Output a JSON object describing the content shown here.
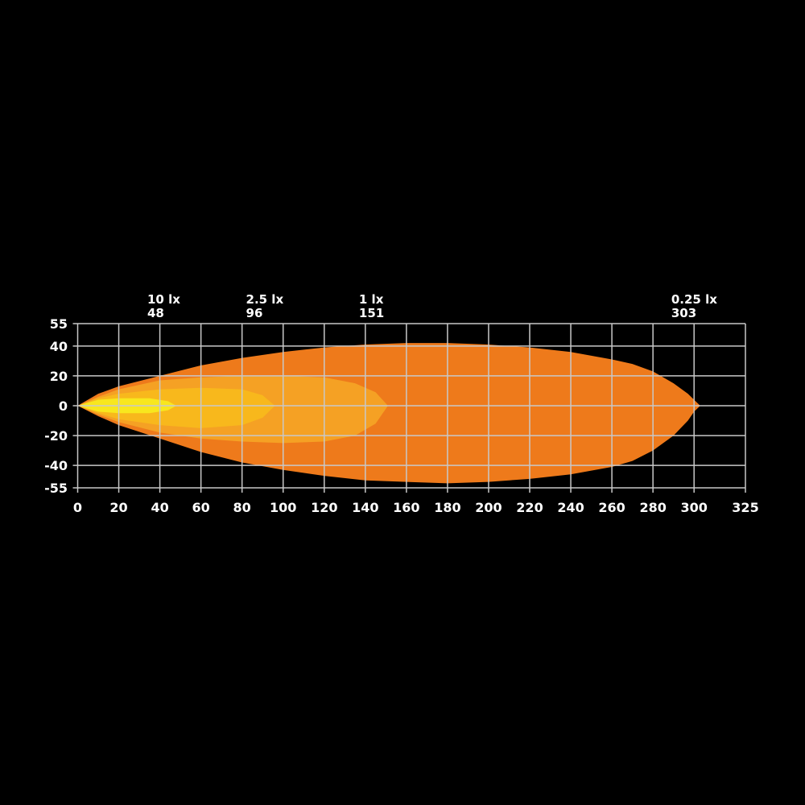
{
  "chart_data": {
    "type": "area",
    "title": "",
    "xlabel": "",
    "ylabel": "",
    "xlim": [
      0,
      325
    ],
    "ylim": [
      -55,
      55
    ],
    "x_ticks": [
      0,
      20,
      40,
      60,
      80,
      100,
      120,
      140,
      160,
      180,
      200,
      220,
      240,
      260,
      280,
      300,
      325
    ],
    "y_ticks": [
      55,
      40,
      20,
      0,
      -20,
      -40,
      -55
    ],
    "grid": true,
    "background": "#000000",
    "grid_color": "#c8c8c8",
    "isolux_labels": [
      {
        "lux": "10 lx",
        "distance": "48",
        "x": 48
      },
      {
        "lux": "2.5 lx",
        "distance": "96",
        "x": 96
      },
      {
        "lux": "1 lx",
        "distance": "151",
        "x": 151
      },
      {
        "lux": "0.25 lx",
        "distance": "303",
        "x": 303
      }
    ],
    "series": [
      {
        "level": "0.25 lx",
        "color": "#EE7A1B",
        "x": [
          0,
          10,
          20,
          40,
          60,
          80,
          100,
          120,
          140,
          160,
          180,
          200,
          220,
          240,
          260,
          270,
          280,
          290,
          297,
          300,
          303
        ],
        "upper": [
          0,
          8,
          13,
          20,
          27,
          32,
          36,
          39,
          41,
          42,
          42,
          41,
          39,
          36,
          31,
          28,
          23,
          15,
          8,
          4,
          0
        ],
        "lower": [
          0,
          -7,
          -13,
          -22,
          -31,
          -38,
          -43,
          -47,
          -50,
          -51,
          -52,
          -51,
          -49,
          -46,
          -41,
          -37,
          -30,
          -20,
          -10,
          -4,
          0
        ]
      },
      {
        "level": "1 lx",
        "color": "#F5A124",
        "x": [
          0,
          10,
          20,
          40,
          60,
          80,
          100,
          120,
          135,
          145,
          151
        ],
        "upper": [
          0,
          6,
          11,
          17,
          19,
          20,
          20,
          19,
          15,
          9,
          0
        ],
        "lower": [
          0,
          -6,
          -11,
          -18,
          -22,
          -24,
          -25,
          -24,
          -20,
          -12,
          0
        ]
      },
      {
        "level": "2.5 lx",
        "color": "#F8B81C",
        "x": [
          0,
          10,
          20,
          40,
          60,
          80,
          90,
          96
        ],
        "upper": [
          0,
          5,
          8,
          11,
          12,
          11,
          7,
          0
        ],
        "lower": [
          0,
          -5,
          -9,
          -13,
          -15,
          -13,
          -8,
          0
        ]
      },
      {
        "level": "10 lx",
        "color": "#F8E71E",
        "x": [
          0,
          10,
          20,
          35,
          44,
          48
        ],
        "upper": [
          0,
          4,
          5,
          5,
          3,
          0
        ],
        "lower": [
          0,
          -4,
          -5,
          -5,
          -3,
          0
        ]
      }
    ]
  }
}
